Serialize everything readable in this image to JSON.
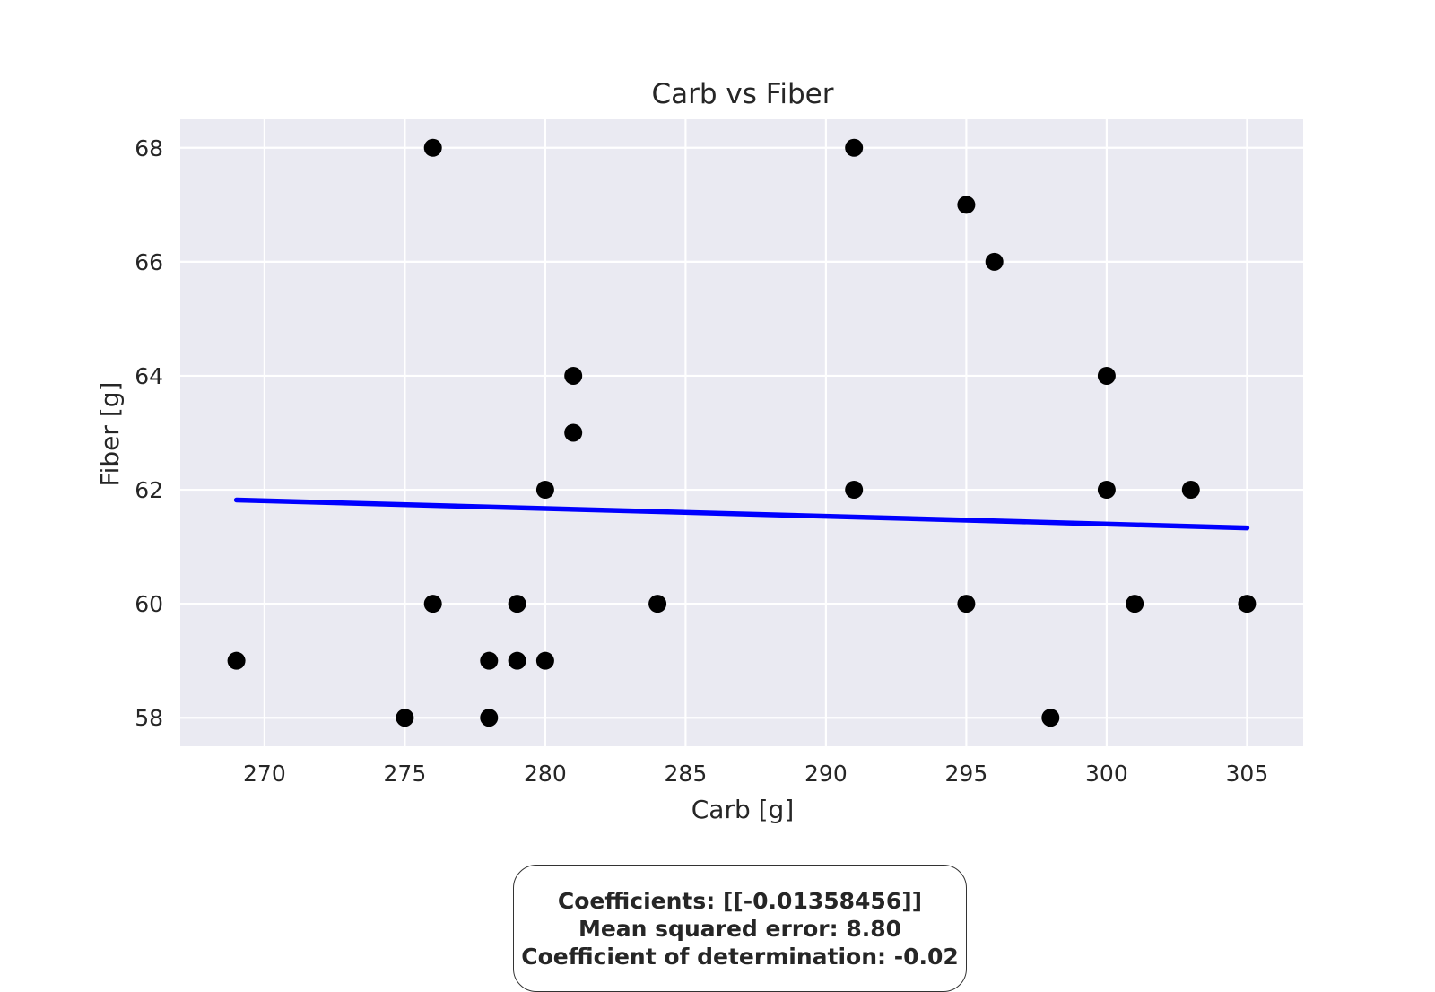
{
  "chart_data": {
    "type": "scatter",
    "title": "Carb vs Fiber",
    "xlabel": "Carb [g]",
    "ylabel": "Fiber [g]",
    "xlim": [
      267,
      307
    ],
    "ylim": [
      57.5,
      68.5
    ],
    "xticks": [
      270,
      275,
      280,
      285,
      290,
      295,
      300,
      305
    ],
    "yticks": [
      58,
      60,
      62,
      64,
      66,
      68
    ],
    "grid": true,
    "colors": {
      "background": "#EAEAF2",
      "grid": "#FFFFFF",
      "points": "#000000",
      "fit_line": "#0000FF"
    },
    "points": [
      {
        "x": 269,
        "y": 59
      },
      {
        "x": 275,
        "y": 58
      },
      {
        "x": 276,
        "y": 68
      },
      {
        "x": 276,
        "y": 60
      },
      {
        "x": 278,
        "y": 59
      },
      {
        "x": 278,
        "y": 58
      },
      {
        "x": 279,
        "y": 60
      },
      {
        "x": 279,
        "y": 59
      },
      {
        "x": 280,
        "y": 62
      },
      {
        "x": 280,
        "y": 59
      },
      {
        "x": 281,
        "y": 64
      },
      {
        "x": 281,
        "y": 63
      },
      {
        "x": 284,
        "y": 60
      },
      {
        "x": 291,
        "y": 68
      },
      {
        "x": 291,
        "y": 62
      },
      {
        "x": 295,
        "y": 67
      },
      {
        "x": 295,
        "y": 60
      },
      {
        "x": 296,
        "y": 66
      },
      {
        "x": 298,
        "y": 58
      },
      {
        "x": 300,
        "y": 64
      },
      {
        "x": 300,
        "y": 62
      },
      {
        "x": 301,
        "y": 60
      },
      {
        "x": 303,
        "y": 62
      },
      {
        "x": 305,
        "y": 60
      }
    ],
    "fit_line": {
      "x": [
        269,
        305
      ],
      "y": [
        61.82,
        61.33
      ]
    }
  },
  "stats": {
    "line1": "Coefficients: [[-0.01358456]]",
    "line2": "Mean squared error: 8.80",
    "line3": "Coefficient of determination: -0.02"
  }
}
